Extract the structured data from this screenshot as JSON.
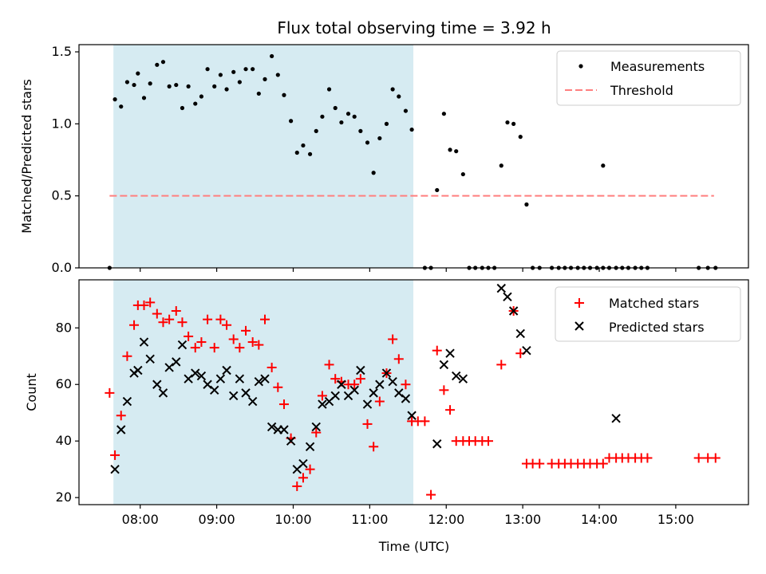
{
  "chart_data": [
    {
      "type": "scatter",
      "title": "Flux total observing time = 3.92 h",
      "xlabel": "",
      "ylabel": "Matched/Predicted stars",
      "xlim": [
        7.2,
        15.95
      ],
      "ylim": [
        0.0,
        1.55
      ],
      "yticks": [
        0.0,
        0.5,
        1.0,
        1.5
      ],
      "ytick_labels": [
        "0.0",
        "0.5",
        "1.0",
        "1.5"
      ],
      "shaded_span": [
        7.65,
        11.57
      ],
      "threshold": {
        "name": "Threshold",
        "y": 0.5,
        "x": [
          7.6,
          15.5
        ],
        "color": "#ff7f7f"
      },
      "legend": {
        "location": "upper right",
        "entries": [
          "Measurements",
          "Threshold"
        ]
      },
      "series": [
        {
          "name": "Measurements",
          "marker": "dot",
          "color": "#000000",
          "points": [
            [
              7.6,
              0.0
            ],
            [
              7.67,
              1.17
            ],
            [
              7.75,
              1.12
            ],
            [
              7.83,
              1.29
            ],
            [
              7.92,
              1.27
            ],
            [
              7.97,
              1.35
            ],
            [
              8.05,
              1.18
            ],
            [
              8.13,
              1.28
            ],
            [
              8.22,
              1.41
            ],
            [
              8.3,
              1.43
            ],
            [
              8.38,
              1.26
            ],
            [
              8.47,
              1.27
            ],
            [
              8.55,
              1.11
            ],
            [
              8.63,
              1.26
            ],
            [
              8.72,
              1.14
            ],
            [
              8.8,
              1.19
            ],
            [
              8.88,
              1.38
            ],
            [
              8.97,
              1.26
            ],
            [
              9.05,
              1.34
            ],
            [
              9.13,
              1.24
            ],
            [
              9.22,
              1.36
            ],
            [
              9.3,
              1.29
            ],
            [
              9.38,
              1.38
            ],
            [
              9.47,
              1.38
            ],
            [
              9.55,
              1.21
            ],
            [
              9.63,
              1.31
            ],
            [
              9.72,
              1.47
            ],
            [
              9.8,
              1.34
            ],
            [
              9.88,
              1.2
            ],
            [
              9.97,
              1.02
            ],
            [
              10.05,
              0.8
            ],
            [
              10.13,
              0.85
            ],
            [
              10.22,
              0.79
            ],
            [
              10.3,
              0.95
            ],
            [
              10.38,
              1.05
            ],
            [
              10.47,
              1.24
            ],
            [
              10.55,
              1.11
            ],
            [
              10.63,
              1.01
            ],
            [
              10.72,
              1.07
            ],
            [
              10.8,
              1.05
            ],
            [
              10.88,
              0.95
            ],
            [
              10.97,
              0.87
            ],
            [
              11.05,
              0.66
            ],
            [
              11.13,
              0.9
            ],
            [
              11.22,
              1.0
            ],
            [
              11.3,
              1.24
            ],
            [
              11.38,
              1.19
            ],
            [
              11.47,
              1.09
            ],
            [
              11.55,
              0.96
            ],
            [
              11.72,
              0.0
            ],
            [
              11.8,
              0.0
            ],
            [
              11.88,
              0.54
            ],
            [
              11.97,
              1.07
            ],
            [
              12.05,
              0.82
            ],
            [
              12.13,
              0.81
            ],
            [
              12.22,
              0.65
            ],
            [
              12.3,
              0.0
            ],
            [
              12.38,
              0.0
            ],
            [
              12.47,
              0.0
            ],
            [
              12.55,
              0.0
            ],
            [
              12.63,
              0.0
            ],
            [
              12.72,
              0.71
            ],
            [
              12.8,
              1.01
            ],
            [
              12.88,
              1.0
            ],
            [
              12.97,
              0.91
            ],
            [
              13.05,
              0.44
            ],
            [
              13.13,
              0.0
            ],
            [
              13.22,
              0.0
            ],
            [
              13.38,
              0.0
            ],
            [
              13.47,
              0.0
            ],
            [
              13.55,
              0.0
            ],
            [
              13.63,
              0.0
            ],
            [
              13.72,
              0.0
            ],
            [
              13.8,
              0.0
            ],
            [
              13.88,
              0.0
            ],
            [
              13.97,
              0.0
            ],
            [
              14.05,
              0.0
            ],
            [
              14.13,
              0.0
            ],
            [
              14.05,
              0.71
            ],
            [
              14.22,
              0.0
            ],
            [
              14.3,
              0.0
            ],
            [
              14.38,
              0.0
            ],
            [
              14.47,
              0.0
            ],
            [
              14.55,
              0.0
            ],
            [
              14.63,
              0.0
            ],
            [
              15.3,
              0.0
            ],
            [
              15.42,
              0.0
            ],
            [
              15.52,
              0.0
            ]
          ]
        }
      ]
    },
    {
      "type": "scatter",
      "title": "",
      "xlabel": "Time (UTC)",
      "ylabel": "Count",
      "xlim": [
        7.2,
        15.95
      ],
      "ylim": [
        17.5,
        97.0
      ],
      "xticks": [
        8,
        9,
        10,
        11,
        12,
        13,
        14,
        15
      ],
      "xtick_labels": [
        "08:00",
        "09:00",
        "10:00",
        "11:00",
        "12:00",
        "13:00",
        "14:00",
        "15:00"
      ],
      "yticks": [
        20,
        40,
        60,
        80
      ],
      "ytick_labels": [
        "20",
        "40",
        "60",
        "80"
      ],
      "shaded_span": [
        7.65,
        11.57
      ],
      "legend": {
        "location": "upper right",
        "entries": [
          "Matched stars",
          "Predicted stars"
        ]
      },
      "series": [
        {
          "name": "Matched stars",
          "marker": "plus",
          "color": "#ff0000",
          "points": [
            [
              7.6,
              57
            ],
            [
              7.67,
              35
            ],
            [
              7.75,
              49
            ],
            [
              7.83,
              70
            ],
            [
              7.92,
              81
            ],
            [
              7.97,
              88
            ],
            [
              8.05,
              88
            ],
            [
              8.13,
              89
            ],
            [
              8.22,
              85
            ],
            [
              8.3,
              82
            ],
            [
              8.38,
              83
            ],
            [
              8.47,
              86
            ],
            [
              8.55,
              82
            ],
            [
              8.63,
              77
            ],
            [
              8.72,
              73
            ],
            [
              8.8,
              75
            ],
            [
              8.88,
              83
            ],
            [
              8.97,
              73
            ],
            [
              9.05,
              83
            ],
            [
              9.13,
              81
            ],
            [
              9.22,
              76
            ],
            [
              9.3,
              73
            ],
            [
              9.38,
              79
            ],
            [
              9.47,
              75
            ],
            [
              9.55,
              74
            ],
            [
              9.63,
              83
            ],
            [
              9.72,
              66
            ],
            [
              9.8,
              59
            ],
            [
              9.88,
              53
            ],
            [
              9.97,
              41
            ],
            [
              10.05,
              24
            ],
            [
              10.13,
              27
            ],
            [
              10.22,
              30
            ],
            [
              10.3,
              43
            ],
            [
              10.38,
              56
            ],
            [
              10.47,
              67
            ],
            [
              10.55,
              62
            ],
            [
              10.63,
              61
            ],
            [
              10.72,
              60
            ],
            [
              10.8,
              60
            ],
            [
              10.88,
              62
            ],
            [
              10.97,
              46
            ],
            [
              11.05,
              38
            ],
            [
              11.13,
              54
            ],
            [
              11.22,
              64
            ],
            [
              11.3,
              76
            ],
            [
              11.38,
              69
            ],
            [
              11.47,
              60
            ],
            [
              11.55,
              47
            ],
            [
              11.63,
              47
            ],
            [
              11.72,
              47
            ],
            [
              11.8,
              21
            ],
            [
              11.88,
              72
            ],
            [
              11.97,
              58
            ],
            [
              12.05,
              51
            ],
            [
              12.13,
              40
            ],
            [
              12.22,
              40
            ],
            [
              12.3,
              40
            ],
            [
              12.38,
              40
            ],
            [
              12.47,
              40
            ],
            [
              12.55,
              40
            ],
            [
              12.72,
              67
            ],
            [
              12.88,
              86
            ],
            [
              12.97,
              71
            ],
            [
              13.05,
              32
            ],
            [
              13.13,
              32
            ],
            [
              13.22,
              32
            ],
            [
              13.38,
              32
            ],
            [
              13.47,
              32
            ],
            [
              13.55,
              32
            ],
            [
              13.63,
              32
            ],
            [
              13.72,
              32
            ],
            [
              13.8,
              32
            ],
            [
              13.88,
              32
            ],
            [
              13.97,
              32
            ],
            [
              14.05,
              32
            ],
            [
              14.13,
              34
            ],
            [
              14.22,
              34
            ],
            [
              14.3,
              34
            ],
            [
              14.38,
              34
            ],
            [
              14.47,
              34
            ],
            [
              14.55,
              34
            ],
            [
              14.63,
              34
            ],
            [
              15.3,
              34
            ],
            [
              15.42,
              34
            ],
            [
              15.52,
              34
            ]
          ]
        },
        {
          "name": "Predicted stars",
          "marker": "x",
          "color": "#000000",
          "points": [
            [
              7.67,
              30
            ],
            [
              7.75,
              44
            ],
            [
              7.83,
              54
            ],
            [
              7.92,
              64
            ],
            [
              7.97,
              65
            ],
            [
              8.05,
              75
            ],
            [
              8.13,
              69
            ],
            [
              8.22,
              60
            ],
            [
              8.3,
              57
            ],
            [
              8.38,
              66
            ],
            [
              8.47,
              68
            ],
            [
              8.55,
              74
            ],
            [
              8.63,
              62
            ],
            [
              8.72,
              64
            ],
            [
              8.8,
              63
            ],
            [
              8.88,
              60
            ],
            [
              8.97,
              58
            ],
            [
              9.05,
              62
            ],
            [
              9.13,
              65
            ],
            [
              9.22,
              56
            ],
            [
              9.3,
              62
            ],
            [
              9.38,
              57
            ],
            [
              9.47,
              54
            ],
            [
              9.55,
              61
            ],
            [
              9.63,
              62
            ],
            [
              9.72,
              45
            ],
            [
              9.8,
              44
            ],
            [
              9.88,
              44
            ],
            [
              9.97,
              40
            ],
            [
              10.05,
              30
            ],
            [
              10.13,
              32
            ],
            [
              10.22,
              38
            ],
            [
              10.3,
              45
            ],
            [
              10.38,
              53
            ],
            [
              10.47,
              54
            ],
            [
              10.55,
              56
            ],
            [
              10.63,
              60
            ],
            [
              10.72,
              56
            ],
            [
              10.8,
              58
            ],
            [
              10.88,
              65
            ],
            [
              10.97,
              53
            ],
            [
              11.05,
              57
            ],
            [
              11.13,
              60
            ],
            [
              11.22,
              64
            ],
            [
              11.3,
              61
            ],
            [
              11.38,
              57
            ],
            [
              11.47,
              55
            ],
            [
              11.55,
              49
            ],
            [
              11.88,
              39
            ],
            [
              11.97,
              67
            ],
            [
              12.05,
              71
            ],
            [
              12.13,
              63
            ],
            [
              12.22,
              62
            ],
            [
              12.72,
              94
            ],
            [
              12.8,
              91
            ],
            [
              12.88,
              86
            ],
            [
              12.97,
              78
            ],
            [
              13.05,
              72
            ],
            [
              14.22,
              48
            ]
          ]
        }
      ]
    }
  ]
}
